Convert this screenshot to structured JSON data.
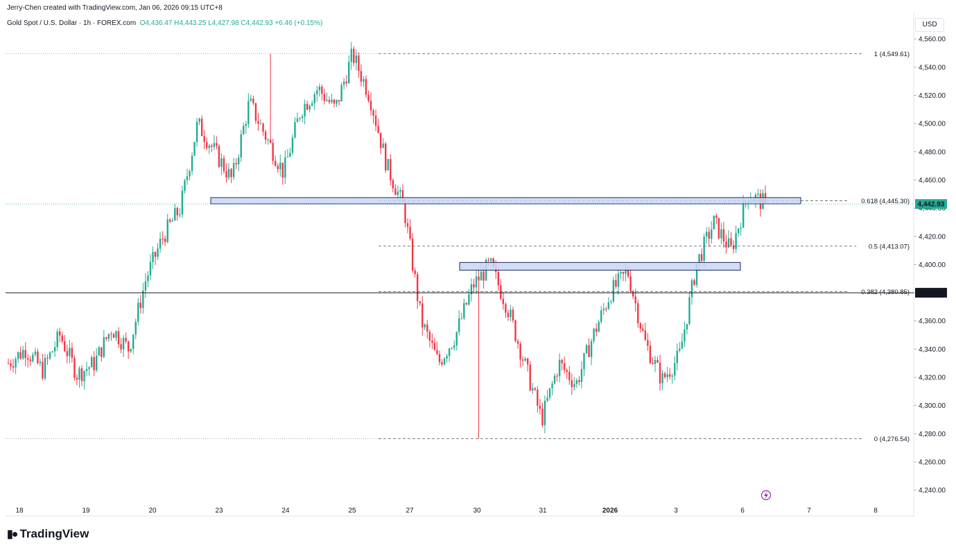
{
  "header": {
    "credit": "Jerry-Chen created with TradingView.com, Jan 06, 2026 09:15 UTC+8",
    "symbol": "Gold Spot / U.S. Dollar · 1h · FOREX.com",
    "ohlc": "O4,436.47  H4,443.25  L4,427.98  C4,442.93  +6.46 (+0.15%)",
    "currency": "USD"
  },
  "branding": {
    "name": "TradingView",
    "logo_icon": "tradingview-logo-icon"
  },
  "colors": {
    "up": "#22ab94",
    "down": "#f23645",
    "zone_fill": "#c9d6f5",
    "zone_border": "#1e2a5e",
    "price_tag": "#22ab94"
  },
  "chart_data": {
    "type": "candlestick",
    "title": "Gold Spot / U.S. Dollar · 1h · FOREX.com",
    "y_axis": {
      "unit": "USD",
      "range": [
        4230,
        4565
      ],
      "ticks": [
        "4,560.00",
        "4,540.00",
        "4,520.00",
        "4,500.00",
        "4,480.00",
        "4,460.00",
        "4,440.00",
        "4,420.00",
        "4,400.00",
        "4,380.00",
        "4,360.00",
        "4,340.00",
        "4,320.00",
        "4,300.00",
        "4,280.00",
        "4,260.00",
        "4,240.00"
      ]
    },
    "x_axis": {
      "ticks": [
        "18",
        "19",
        "20",
        "23",
        "24",
        "25",
        "27",
        "30",
        "31",
        "2026",
        "3",
        "6",
        "7",
        "8"
      ]
    },
    "last_price": {
      "value": 4442.93,
      "label": "4,442.93"
    },
    "horizontal_line": {
      "value": 4380.0,
      "label": "4,380.00"
    },
    "fibonacci": [
      {
        "ratio": "1",
        "value": 4549.61,
        "label": "1 (4,549.61)"
      },
      {
        "ratio": "0.618",
        "value": 4445.3,
        "label": "0.618 (4,445.30)"
      },
      {
        "ratio": "0.5",
        "value": 4413.07,
        "label": "0.5 (4,413.07)"
      },
      {
        "ratio": "0.382",
        "value": 4380.85,
        "label": "0.382 (4,380.85)"
      },
      {
        "ratio": "0",
        "value": 4276.54,
        "label": "0 (4,276.54)"
      }
    ],
    "zones": [
      {
        "name": "resistance-zone",
        "high": 4446.5,
        "low": 4444.0
      },
      {
        "name": "support-zone",
        "high": 4400.5,
        "low": 4397.0
      }
    ],
    "price_path": [
      [
        "18",
        4330
      ],
      [
        "18.5",
        4340
      ],
      [
        "19",
        4325
      ],
      [
        "19.3",
        4350
      ],
      [
        "19.6",
        4322
      ],
      [
        "20",
        4330
      ],
      [
        "20.3",
        4355
      ],
      [
        "20.5",
        4340
      ],
      [
        "20.8",
        4390
      ],
      [
        "21",
        4420
      ],
      [
        "23",
        4440
      ],
      [
        "23.3",
        4500
      ],
      [
        "23.6",
        4480
      ],
      [
        "24",
        4460
      ],
      [
        "24.3",
        4515
      ],
      [
        "24.6",
        4490
      ],
      [
        "25",
        4465
      ],
      [
        "25.3",
        4510
      ],
      [
        "25.6",
        4525
      ],
      [
        "26",
        4510
      ],
      [
        "27",
        4549
      ],
      [
        "27.3",
        4520
      ],
      [
        "27.6",
        4470
      ],
      [
        "28",
        4440
      ],
      [
        "29",
        4360
      ],
      [
        "30",
        4330
      ],
      [
        "30.3",
        4350
      ],
      [
        "30.6",
        4385
      ],
      [
        "31",
        4400
      ],
      [
        "31.3",
        4370
      ],
      [
        "31.6",
        4330
      ],
      [
        "1",
        4290
      ],
      [
        "1.3",
        4330
      ],
      [
        "1.6",
        4315
      ],
      [
        "2",
        4350
      ],
      [
        "2.5",
        4380
      ],
      [
        "2.8",
        4395
      ],
      [
        "3",
        4345
      ],
      [
        "3.3",
        4318
      ],
      [
        "3.6",
        4335
      ],
      [
        "3.9",
        4400
      ],
      [
        "4.5",
        4430
      ],
      [
        "5",
        4410
      ],
      [
        "5.5",
        4450
      ],
      [
        "6",
        4442.93
      ]
    ]
  }
}
